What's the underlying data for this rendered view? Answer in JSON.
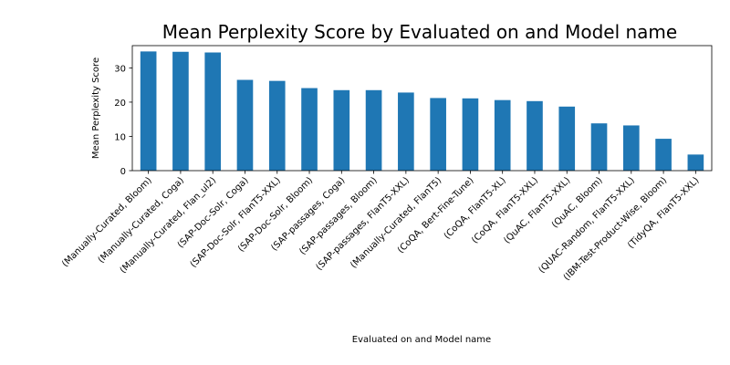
{
  "chart_data": {
    "type": "bar",
    "title": "Mean Perplexity Score by Evaluated on and Model name",
    "xlabel": "Evaluated on and Model name",
    "ylabel": "Mean Perplexity Score",
    "ylim": [
      0,
      36.5
    ],
    "yticks": [
      0,
      10,
      20,
      30
    ],
    "grid": false,
    "bar_color": "#1f77b4",
    "categories": [
      "(Manually-Curated, Bloom)",
      "(Manually-Curated, Coga)",
      "(Manually-Curated, Flan_ul2)",
      "(SAP-Doc-Solr, Coga)",
      "(SAP-Doc-Solr, FlanT5-XXL)",
      "(SAP-Doc-Solr, Bloom)",
      "(SAP-passages, Coga)",
      "(SAP-passages, Bloom)",
      "(SAP-passages, FlanT5-XXL)",
      "(Manually-Curated, FlanT5)",
      "(CoQA, Bert-Fine-Tune)",
      "(CoQA, FlanT5-XL)",
      "(CoQA, FlanT5-XXL)",
      "(QuAC, FlanT5-XXL)",
      "(QuAC, Bloom)",
      "(QUAC-Random, FlanT5-XXL)",
      "(IBM-Test-Product-Wise, Bloom)",
      "(TidyQA, FlanT5-XXL)"
    ],
    "values": [
      34.8,
      34.7,
      34.5,
      26.5,
      26.2,
      24.1,
      23.5,
      23.5,
      22.8,
      21.2,
      21.1,
      20.6,
      20.3,
      18.7,
      13.8,
      13.2,
      9.3,
      4.7
    ]
  }
}
